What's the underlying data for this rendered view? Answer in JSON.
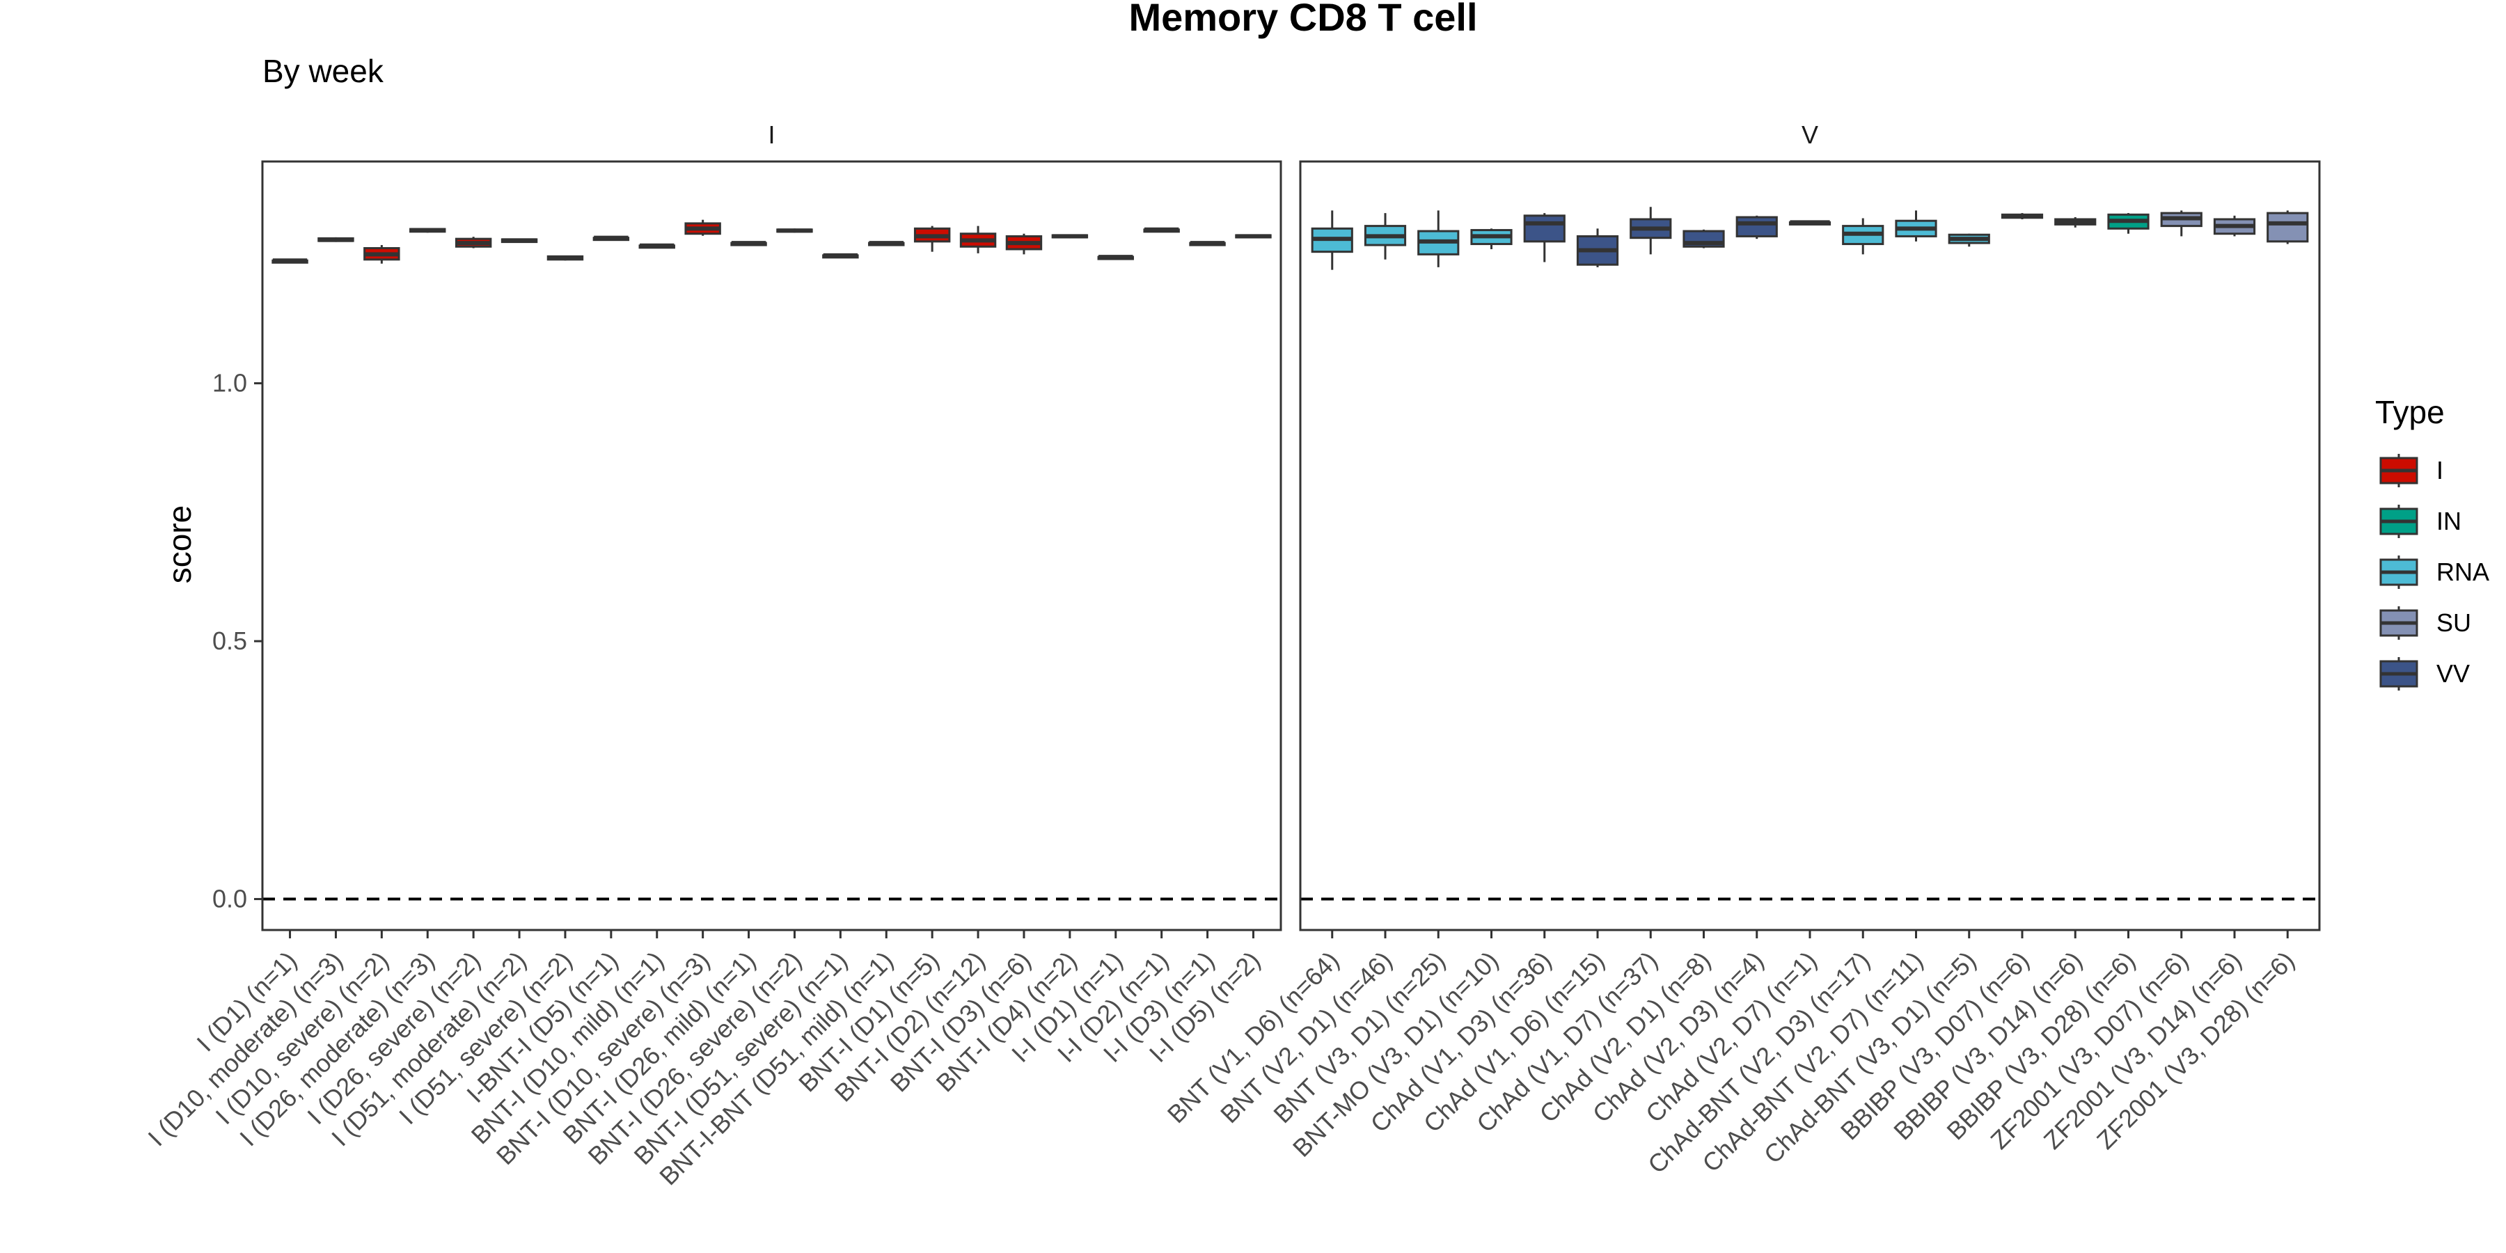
{
  "chart_data": {
    "type": "boxplot",
    "title": "Memory CD8 T cell",
    "subtitle": "By week",
    "ylabel": "score",
    "xlabel": "",
    "ylim": [
      -0.06,
      1.43
    ],
    "yticks": [
      0.0,
      0.5,
      1.0
    ],
    "yticklabels": [
      "0.0",
      "0.5",
      "1.0"
    ],
    "reference_line": 0.0,
    "legend": {
      "title": "Type",
      "placement": "right",
      "entries": [
        {
          "label": "I",
          "color": "#CC0C00"
        },
        {
          "label": "IN",
          "color": "#00A087"
        },
        {
          "label": "RNA",
          "color": "#4DBBD5"
        },
        {
          "label": "SU",
          "color": "#8491B4"
        },
        {
          "label": "VV",
          "color": "#3C5488"
        }
      ]
    },
    "colors": {
      "I": "#CC0C00",
      "IN": "#00A087",
      "RNA": "#4DBBD5",
      "SU": "#8491B4",
      "VV": "#3C5488"
    },
    "panels": [
      {
        "strip": "I",
        "categories": [
          {
            "label": "I (D1) (n=1)",
            "type": "I",
            "q1": 1.238,
            "median": 1.238,
            "q3": 1.238,
            "lo": 1.238,
            "hi": 1.238
          },
          {
            "label": "I (D10, moderate) (n=3)",
            "type": "I",
            "q1": 1.276,
            "median": 1.278,
            "q3": 1.281,
            "lo": 1.274,
            "hi": 1.283
          },
          {
            "label": "I (D10, severe) (n=2)",
            "type": "I",
            "q1": 1.24,
            "median": 1.25,
            "q3": 1.262,
            "lo": 1.232,
            "hi": 1.268
          },
          {
            "label": "I (D26, moderate) (n=3)",
            "type": "I",
            "q1": 1.294,
            "median": 1.297,
            "q3": 1.299,
            "lo": 1.292,
            "hi": 1.3
          },
          {
            "label": "I (D26, severe) (n=2)",
            "type": "I",
            "q1": 1.265,
            "median": 1.272,
            "q3": 1.28,
            "lo": 1.262,
            "hi": 1.284
          },
          {
            "label": "I (D51, moderate) (n=2)",
            "type": "I",
            "q1": 1.274,
            "median": 1.277,
            "q3": 1.279,
            "lo": 1.273,
            "hi": 1.28
          },
          {
            "label": "I (D51, severe) (n=2)",
            "type": "I",
            "q1": 1.24,
            "median": 1.243,
            "q3": 1.246,
            "lo": 1.238,
            "hi": 1.247
          },
          {
            "label": "I-BNT-I (D5) (n=1)",
            "type": "I",
            "q1": 1.282,
            "median": 1.282,
            "q3": 1.282,
            "lo": 1.282,
            "hi": 1.282
          },
          {
            "label": "BNT-I (D10, mild) (n=1)",
            "type": "I",
            "q1": 1.267,
            "median": 1.267,
            "q3": 1.267,
            "lo": 1.267,
            "hi": 1.267
          },
          {
            "label": "BNT-I (D10, severe) (n=3)",
            "type": "I",
            "q1": 1.29,
            "median": 1.3,
            "q3": 1.31,
            "lo": 1.286,
            "hi": 1.317
          },
          {
            "label": "BNT-I (D26, mild) (n=1)",
            "type": "I",
            "q1": 1.272,
            "median": 1.272,
            "q3": 1.272,
            "lo": 1.272,
            "hi": 1.272
          },
          {
            "label": "BNT-I (D26, severe) (n=2)",
            "type": "I",
            "q1": 1.294,
            "median": 1.296,
            "q3": 1.298,
            "lo": 1.292,
            "hi": 1.3
          },
          {
            "label": "BNT-I (D51, severe) (n=1)",
            "type": "I",
            "q1": 1.248,
            "median": 1.248,
            "q3": 1.248,
            "lo": 1.248,
            "hi": 1.248
          },
          {
            "label": "BNT-I-BNT (D51, mild) (n=1)",
            "type": "I",
            "q1": 1.272,
            "median": 1.272,
            "q3": 1.272,
            "lo": 1.272,
            "hi": 1.272
          },
          {
            "label": "BNT-I (D1) (n=5)",
            "type": "I",
            "q1": 1.275,
            "median": 1.285,
            "q3": 1.3,
            "lo": 1.255,
            "hi": 1.305
          },
          {
            "label": "BNT-I (D2) (n=12)",
            "type": "I",
            "q1": 1.265,
            "median": 1.277,
            "q3": 1.29,
            "lo": 1.252,
            "hi": 1.305
          },
          {
            "label": "BNT-I (D3) (n=6)",
            "type": "I",
            "q1": 1.26,
            "median": 1.272,
            "q3": 1.285,
            "lo": 1.25,
            "hi": 1.29
          },
          {
            "label": "BNT-I (D4) (n=2)",
            "type": "I",
            "q1": 1.283,
            "median": 1.285,
            "q3": 1.287,
            "lo": 1.281,
            "hi": 1.288
          },
          {
            "label": "I-I (D1) (n=1)",
            "type": "I",
            "q1": 1.245,
            "median": 1.245,
            "q3": 1.245,
            "lo": 1.245,
            "hi": 1.245
          },
          {
            "label": "I-I (D2) (n=1)",
            "type": "I",
            "q1": 1.298,
            "median": 1.298,
            "q3": 1.298,
            "lo": 1.298,
            "hi": 1.298
          },
          {
            "label": "I-I (D3) (n=1)",
            "type": "I",
            "q1": 1.272,
            "median": 1.272,
            "q3": 1.272,
            "lo": 1.272,
            "hi": 1.272
          },
          {
            "label": "I-I (D5) (n=2)",
            "type": "I",
            "q1": 1.283,
            "median": 1.285,
            "q3": 1.287,
            "lo": 1.282,
            "hi": 1.288
          }
        ]
      },
      {
        "strip": "V",
        "categories": [
          {
            "label": "BNT (V1, D6) (n=64)",
            "type": "RNA",
            "q1": 1.255,
            "median": 1.28,
            "q3": 1.3,
            "lo": 1.22,
            "hi": 1.335
          },
          {
            "label": "BNT (V2, D1) (n=46)",
            "type": "RNA",
            "q1": 1.268,
            "median": 1.285,
            "q3": 1.305,
            "lo": 1.24,
            "hi": 1.33
          },
          {
            "label": "BNT (V3, D1) (n=25)",
            "type": "RNA",
            "q1": 1.25,
            "median": 1.275,
            "q3": 1.295,
            "lo": 1.225,
            "hi": 1.335
          },
          {
            "label": "BNT-MO (V3, D1) (n=10)",
            "type": "RNA",
            "q1": 1.27,
            "median": 1.285,
            "q3": 1.297,
            "lo": 1.26,
            "hi": 1.3
          },
          {
            "label": "ChAd (V1, D3) (n=36)",
            "type": "VV",
            "q1": 1.275,
            "median": 1.31,
            "q3": 1.325,
            "lo": 1.235,
            "hi": 1.33
          },
          {
            "label": "ChAd (V1, D6) (n=15)",
            "type": "VV",
            "q1": 1.23,
            "median": 1.258,
            "q3": 1.285,
            "lo": 1.225,
            "hi": 1.3
          },
          {
            "label": "ChAd (V1, D7) (n=37)",
            "type": "VV",
            "q1": 1.282,
            "median": 1.3,
            "q3": 1.318,
            "lo": 1.25,
            "hi": 1.342
          },
          {
            "label": "ChAd (V2, D1) (n=8)",
            "type": "VV",
            "q1": 1.265,
            "median": 1.272,
            "q3": 1.295,
            "lo": 1.262,
            "hi": 1.298
          },
          {
            "label": "ChAd (V2, D3) (n=4)",
            "type": "VV",
            "q1": 1.285,
            "median": 1.31,
            "q3": 1.322,
            "lo": 1.28,
            "hi": 1.325
          },
          {
            "label": "ChAd (V2, D7) (n=1)",
            "type": "VV",
            "q1": 1.312,
            "median": 1.312,
            "q3": 1.312,
            "lo": 1.312,
            "hi": 1.312
          },
          {
            "label": "ChAd-BNT (V2, D3) (n=17)",
            "type": "RNA",
            "q1": 1.27,
            "median": 1.29,
            "q3": 1.305,
            "lo": 1.25,
            "hi": 1.32
          },
          {
            "label": "ChAd-BNT (V2, D7) (n=11)",
            "type": "RNA",
            "q1": 1.285,
            "median": 1.3,
            "q3": 1.315,
            "lo": 1.275,
            "hi": 1.335
          },
          {
            "label": "ChAd-BNT (V3, D1) (n=5)",
            "type": "RNA",
            "q1": 1.272,
            "median": 1.28,
            "q3": 1.288,
            "lo": 1.265,
            "hi": 1.29
          },
          {
            "label": "BBIBP (V3, D07) (n=6)",
            "type": "IN",
            "q1": 1.321,
            "median": 1.324,
            "q3": 1.327,
            "lo": 1.318,
            "hi": 1.33
          },
          {
            "label": "BBIBP (V3, D14) (n=6)",
            "type": "IN",
            "q1": 1.308,
            "median": 1.313,
            "q3": 1.318,
            "lo": 1.302,
            "hi": 1.322
          },
          {
            "label": "BBIBP (V3, D28) (n=6)",
            "type": "IN",
            "q1": 1.3,
            "median": 1.315,
            "q3": 1.327,
            "lo": 1.29,
            "hi": 1.33
          },
          {
            "label": "ZF2001 (V3, D07) (n=6)",
            "type": "SU",
            "q1": 1.305,
            "median": 1.32,
            "q3": 1.33,
            "lo": 1.285,
            "hi": 1.335
          },
          {
            "label": "ZF2001 (V3, D14) (n=6)",
            "type": "SU",
            "q1": 1.29,
            "median": 1.305,
            "q3": 1.318,
            "lo": 1.285,
            "hi": 1.325
          },
          {
            "label": "ZF2001 (V3, D28) (n=6)",
            "type": "SU",
            "q1": 1.275,
            "median": 1.31,
            "q3": 1.33,
            "lo": 1.27,
            "hi": 1.335
          }
        ]
      }
    ]
  }
}
